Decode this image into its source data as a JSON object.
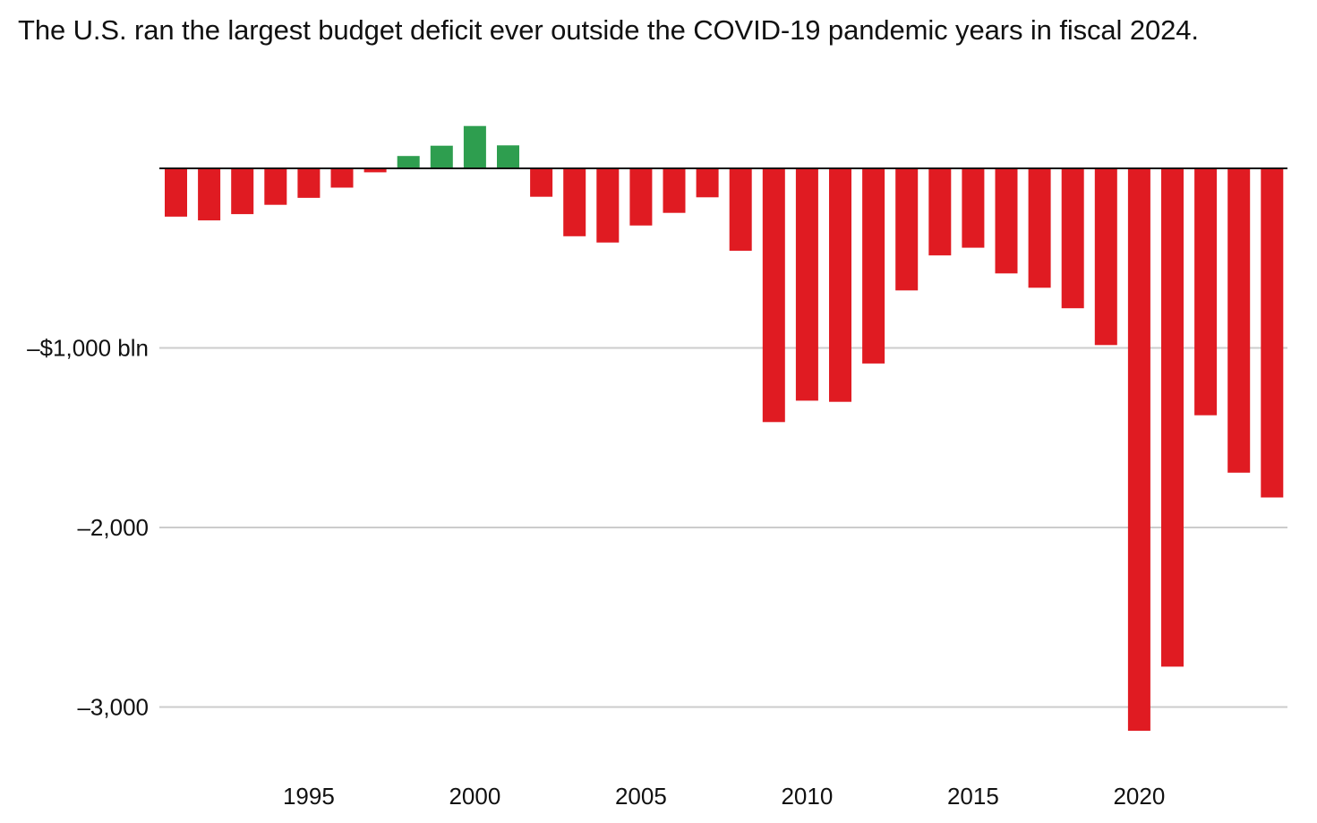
{
  "title": "The U.S. ran the largest budget deficit ever outside the COVID-19 pandemic years in fiscal 2024.",
  "colors": {
    "deficit": "#e01b22",
    "surplus": "#2e9e4f",
    "gridline": "#cccccc",
    "zero_line": "#111111"
  },
  "chart_data": {
    "type": "bar",
    "title": "The U.S. ran the largest budget deficit ever outside the COVID-19 pandemic years in fiscal 2024.",
    "xlabel": "",
    "ylabel": "",
    "unit": "$ billions",
    "ylim": [
      -3250,
      250
    ],
    "grid": true,
    "y_ticks": [
      {
        "value": -1000,
        "label": "–$1,000 bln"
      },
      {
        "value": -2000,
        "label": "–2,000"
      },
      {
        "value": -3000,
        "label": "–3,000"
      }
    ],
    "x_ticks": [
      {
        "value": 1995,
        "label": "1995"
      },
      {
        "value": 2000,
        "label": "2000"
      },
      {
        "value": 2005,
        "label": "2005"
      },
      {
        "value": 2010,
        "label": "2010"
      },
      {
        "value": 2015,
        "label": "2015"
      },
      {
        "value": 2020,
        "label": "2020"
      }
    ],
    "categories": [
      1991,
      1992,
      1993,
      1994,
      1995,
      1996,
      1997,
      1998,
      1999,
      2000,
      2001,
      2002,
      2003,
      2004,
      2005,
      2006,
      2007,
      2008,
      2009,
      2010,
      2011,
      2012,
      2013,
      2014,
      2015,
      2016,
      2017,
      2018,
      2019,
      2020,
      2021,
      2022,
      2023,
      2024
    ],
    "values": [
      -269,
      -290,
      -255,
      -203,
      -164,
      -107,
      -22,
      69,
      126,
      236,
      128,
      -158,
      -378,
      -413,
      -318,
      -248,
      -161,
      -459,
      -1413,
      -1294,
      -1300,
      -1087,
      -680,
      -485,
      -442,
      -585,
      -665,
      -779,
      -984,
      -3132,
      -2775,
      -1375,
      -1695,
      -1833
    ]
  }
}
